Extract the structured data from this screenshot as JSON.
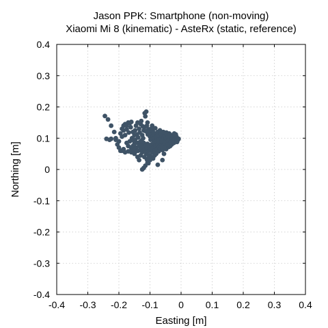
{
  "chart_data": {
    "type": "scatter",
    "title": "Jason PPK: Smartphone (non-moving)",
    "subtitle": "Xiaomi Mi 8 (kinematic) - AsteRx (static, reference)",
    "xlabel": "Easting [m]",
    "ylabel": "Northing [m]",
    "xlim": [
      -0.4,
      0.4
    ],
    "ylim": [
      -0.4,
      0.4
    ],
    "xticks": [
      "-0.4",
      "-0.3",
      "-0.2",
      "-0.1",
      "0",
      "0.1",
      "0.2",
      "0.3",
      "0.4"
    ],
    "yticks": [
      "-0.4",
      "-0.3",
      "-0.2",
      "-0.1",
      "0",
      "0.1",
      "0.2",
      "0.3",
      "0.4"
    ],
    "xtick_values": [
      -0.4,
      -0.3,
      -0.2,
      -0.1,
      0,
      0.1,
      0.2,
      0.3,
      0.4
    ],
    "ytick_values": [
      -0.4,
      -0.3,
      -0.2,
      -0.1,
      0,
      0.1,
      0.2,
      0.3,
      0.4
    ],
    "grid": true,
    "marker_color": "#3f5366",
    "series": [
      {
        "points": [
          [
            -0.245,
            0.171
          ],
          [
            -0.235,
            0.16
          ],
          [
            -0.225,
            0.14
          ],
          [
            -0.215,
            0.12
          ],
          [
            -0.21,
            0.1
          ],
          [
            -0.24,
            0.098
          ],
          [
            -0.23,
            0.095
          ],
          [
            -0.205,
            0.08
          ],
          [
            -0.2,
            0.07
          ],
          [
            -0.195,
            0.06
          ],
          [
            -0.185,
            0.065
          ],
          [
            -0.175,
            0.14
          ],
          [
            -0.17,
            0.15
          ],
          [
            -0.165,
            0.148
          ],
          [
            -0.16,
            0.152
          ],
          [
            -0.155,
            0.12
          ],
          [
            -0.15,
            0.11
          ],
          [
            -0.148,
            0.095
          ],
          [
            -0.145,
            0.14
          ],
          [
            -0.14,
            0.15
          ],
          [
            -0.135,
            0.13
          ],
          [
            -0.13,
            0.145
          ],
          [
            -0.128,
            0.155
          ],
          [
            -0.125,
            0.11
          ],
          [
            -0.122,
            0.1
          ],
          [
            -0.12,
            0.125
          ],
          [
            -0.118,
            0.135
          ],
          [
            -0.117,
            0.18
          ],
          [
            -0.115,
            0.17
          ],
          [
            -0.112,
            0.185
          ],
          [
            -0.11,
            0.14
          ],
          [
            -0.108,
            0.15
          ],
          [
            -0.105,
            0.128
          ],
          [
            -0.103,
            0.118
          ],
          [
            -0.1,
            0.105
          ],
          [
            -0.098,
            0.095
          ],
          [
            -0.095,
            0.112
          ],
          [
            -0.092,
            0.125
          ],
          [
            -0.09,
            0.108
          ],
          [
            -0.087,
            0.1
          ],
          [
            -0.085,
            0.092
          ],
          [
            -0.082,
            0.115
          ],
          [
            -0.08,
            0.105
          ],
          [
            -0.078,
            0.098
          ],
          [
            -0.075,
            0.12
          ],
          [
            -0.072,
            0.11
          ],
          [
            -0.07,
            0.1
          ],
          [
            -0.067,
            0.095
          ],
          [
            -0.065,
            0.115
          ],
          [
            -0.062,
            0.105
          ],
          [
            -0.06,
            0.098
          ],
          [
            -0.058,
            0.112
          ],
          [
            -0.055,
            0.102
          ],
          [
            -0.052,
            0.095
          ],
          [
            -0.05,
            0.108
          ],
          [
            -0.048,
            0.1
          ],
          [
            -0.045,
            0.11
          ],
          [
            -0.042,
            0.105
          ],
          [
            -0.04,
            0.092
          ],
          [
            -0.038,
            0.115
          ],
          [
            -0.035,
            0.1
          ],
          [
            -0.032,
            0.108
          ],
          [
            -0.03,
            0.095
          ],
          [
            -0.025,
            0.103
          ],
          [
            -0.022,
            0.115
          ],
          [
            -0.02,
            0.098
          ],
          [
            -0.018,
            0.09
          ],
          [
            -0.015,
            0.105
          ],
          [
            -0.012,
            0.1
          ],
          [
            -0.01,
            0.095
          ],
          [
            -0.18,
            0.11
          ],
          [
            -0.185,
            0.125
          ],
          [
            -0.19,
            0.105
          ],
          [
            -0.175,
            0.085
          ],
          [
            -0.17,
            0.075
          ],
          [
            -0.165,
            0.09
          ],
          [
            -0.16,
            0.068
          ],
          [
            -0.155,
            0.075
          ],
          [
            -0.15,
            0.082
          ],
          [
            -0.145,
            0.07
          ],
          [
            -0.14,
            0.085
          ],
          [
            -0.138,
            0.06
          ],
          [
            -0.135,
            0.075
          ],
          [
            -0.132,
            0.088
          ],
          [
            -0.13,
            0.065
          ],
          [
            -0.128,
            0.078
          ],
          [
            -0.125,
            0.055
          ],
          [
            -0.122,
            0.07
          ],
          [
            -0.12,
            0.085
          ],
          [
            -0.118,
            0.062
          ],
          [
            -0.115,
            0.075
          ],
          [
            -0.112,
            0.05
          ],
          [
            -0.11,
            0.068
          ],
          [
            -0.108,
            0.082
          ],
          [
            -0.105,
            0.058
          ],
          [
            -0.102,
            0.072
          ],
          [
            -0.1,
            0.045
          ],
          [
            -0.098,
            0.065
          ],
          [
            -0.095,
            0.08
          ],
          [
            -0.092,
            0.055
          ],
          [
            -0.09,
            0.07
          ],
          [
            -0.088,
            0.085
          ],
          [
            -0.085,
            0.06
          ],
          [
            -0.082,
            0.075
          ],
          [
            -0.08,
            0.09
          ],
          [
            -0.078,
            0.065
          ],
          [
            -0.075,
            0.08
          ],
          [
            -0.072,
            0.058
          ],
          [
            -0.07,
            0.072
          ],
          [
            -0.068,
            0.085
          ],
          [
            -0.065,
            0.068
          ],
          [
            -0.062,
            0.08
          ],
          [
            -0.06,
            0.062
          ],
          [
            -0.058,
            0.075
          ],
          [
            -0.055,
            0.088
          ],
          [
            -0.052,
            0.07
          ],
          [
            -0.05,
            0.082
          ],
          [
            -0.048,
            0.065
          ],
          [
            -0.045,
            0.078
          ],
          [
            -0.042,
            0.09
          ],
          [
            -0.04,
            0.072
          ],
          [
            -0.038,
            0.085
          ],
          [
            -0.035,
            0.075
          ],
          [
            -0.03,
            0.08
          ],
          [
            -0.028,
            0.092
          ],
          [
            -0.125,
            0.0
          ],
          [
            -0.12,
            0.005
          ],
          [
            -0.115,
            0.012
          ],
          [
            -0.105,
            0.02
          ],
          [
            -0.1,
            0.03
          ],
          [
            -0.095,
            0.04
          ],
          [
            -0.09,
            0.035
          ],
          [
            -0.075,
            0.015
          ],
          [
            -0.06,
            0.03
          ],
          [
            -0.055,
            0.05
          ],
          [
            -0.14,
            0.04
          ],
          [
            -0.135,
            0.03
          ],
          [
            -0.13,
            0.045
          ],
          [
            -0.15,
            0.05
          ],
          [
            -0.16,
            0.055
          ],
          [
            -0.17,
            0.058
          ],
          [
            -0.18,
            0.055
          ],
          [
            -0.19,
            0.06
          ],
          [
            -0.2,
            0.09
          ],
          [
            -0.21,
            0.095
          ],
          [
            -0.225,
            0.098
          ],
          [
            -0.195,
            0.115
          ],
          [
            -0.19,
            0.13
          ],
          [
            -0.185,
            0.14
          ],
          [
            -0.18,
            0.145
          ],
          [
            -0.175,
            0.128
          ],
          [
            -0.168,
            0.118
          ],
          [
            -0.162,
            0.135
          ],
          [
            -0.158,
            0.1
          ],
          [
            -0.152,
            0.092
          ],
          [
            -0.148,
            0.125
          ],
          [
            -0.142,
            0.112
          ],
          [
            -0.138,
            0.102
          ],
          [
            -0.133,
            0.118
          ],
          [
            -0.127,
            0.092
          ],
          [
            -0.123,
            0.138
          ],
          [
            -0.113,
            0.122
          ],
          [
            -0.107,
            0.112
          ],
          [
            -0.097,
            0.13
          ],
          [
            -0.093,
            0.14
          ],
          [
            -0.088,
            0.118
          ],
          [
            -0.083,
            0.132
          ],
          [
            -0.077,
            0.108
          ],
          [
            -0.073,
            0.09
          ],
          [
            -0.068,
            0.125
          ],
          [
            -0.063,
            0.09
          ],
          [
            -0.057,
            0.12
          ],
          [
            -0.053,
            0.085
          ],
          [
            -0.047,
            0.118
          ],
          [
            -0.043,
            0.08
          ],
          [
            -0.037,
            0.112
          ],
          [
            -0.033,
            0.088
          ],
          [
            -0.027,
            0.11
          ],
          [
            -0.023,
            0.085
          ],
          [
            -0.017,
            0.112
          ],
          [
            -0.013,
            0.088
          ],
          [
            -0.008,
            0.098
          ],
          [
            -0.15,
            0.062
          ],
          [
            -0.145,
            0.058
          ],
          [
            -0.118,
            0.04
          ],
          [
            -0.11,
            0.032
          ],
          [
            -0.103,
            0.04
          ],
          [
            -0.108,
            0.022
          ],
          [
            -0.085,
            0.045
          ],
          [
            -0.08,
            0.05
          ]
        ]
      }
    ]
  }
}
